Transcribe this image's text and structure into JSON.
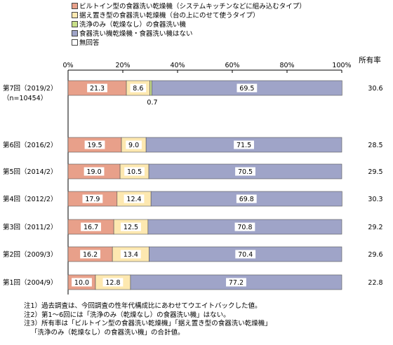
{
  "legend": [
    {
      "label": "ビルトイン型の食器洗い乾燥機（システムキッチンなどに組み込むタイプ）",
      "color": "#e8a08a"
    },
    {
      "label": "据え置き型の食器洗い乾燥機（台の上にのせて使うタイプ）",
      "color": "#fde8b0"
    },
    {
      "label": "洗浄のみ（乾燥なし）の食器洗い機",
      "color": "#c8df88"
    },
    {
      "label": "食器洗い機乾燥機・食器洗い機はない",
      "color": "#9fa4c8"
    },
    {
      "label": "無回答",
      "color": "#ffffff"
    }
  ],
  "ownership_header": "所有率",
  "notes": [
    "注1）過去調査は、今回調査の性年代構成比にあわせてウエイトバックした値。",
    "注2）第1～6回には「洗浄のみ（乾燥なし）の食器洗い機」はない。",
    "注3）所有率は「ビルトイン型の食器洗い乾燥機」「据え置き型の食器洗い乾燥機」",
    "「洗浄のみ（乾燥なし）の食器洗い機」の合計値。"
  ],
  "chart_data": {
    "type": "bar",
    "orientation": "horizontal",
    "stacked": true,
    "xlim": [
      0,
      100
    ],
    "x_ticks": [
      "0%",
      "20%",
      "40%",
      "60%",
      "80%",
      "100%"
    ],
    "categories": [
      "第7回（2019/2）",
      "第6回（2016/2）",
      "第5回（2014/2）",
      "第4回（2012/2）",
      "第3回（2011/2）",
      "第2回（2009/3）",
      "第1回（2004/9）"
    ],
    "category_sublabels": [
      "（n=10454）",
      "",
      "",
      "",
      "",
      "",
      ""
    ],
    "series": [
      {
        "name": "ビルトイン型の食器洗い乾燥機（システムキッチンなどに組み込むタイプ）",
        "values": [
          21.3,
          19.5,
          19.0,
          17.9,
          16.7,
          16.2,
          10.0
        ]
      },
      {
        "name": "据え置き型の食器洗い乾燥機（台の上にのせて使うタイプ）",
        "values": [
          8.6,
          9.0,
          10.5,
          12.4,
          12.5,
          13.4,
          12.8
        ]
      },
      {
        "name": "洗浄のみ（乾燥なし）の食器洗い機",
        "values": [
          0.7,
          0,
          0,
          0,
          0,
          0,
          0
        ]
      },
      {
        "name": "食器洗い機乾燥機・食器洗い機はない",
        "values": [
          69.5,
          71.5,
          70.5,
          69.8,
          70.8,
          70.4,
          77.2
        ]
      },
      {
        "name": "無回答",
        "values": [
          0,
          0,
          0,
          0,
          0,
          0,
          0
        ]
      }
    ],
    "data_labels": [
      [
        "21.3",
        "8.6",
        "0.7",
        "69.5"
      ],
      [
        "19.5",
        "9.0",
        "",
        "71.5"
      ],
      [
        "19.0",
        "10.5",
        "",
        "70.5"
      ],
      [
        "17.9",
        "12.4",
        "",
        "69.8"
      ],
      [
        "16.7",
        "12.5",
        "",
        "70.8"
      ],
      [
        "16.2",
        "13.4",
        "",
        "70.4"
      ],
      [
        "10.0",
        "12.8",
        "",
        "77.2"
      ]
    ],
    "ownership_rate": [
      "30.6",
      "28.5",
      "29.5",
      "30.3",
      "29.2",
      "29.6",
      "22.8"
    ]
  }
}
